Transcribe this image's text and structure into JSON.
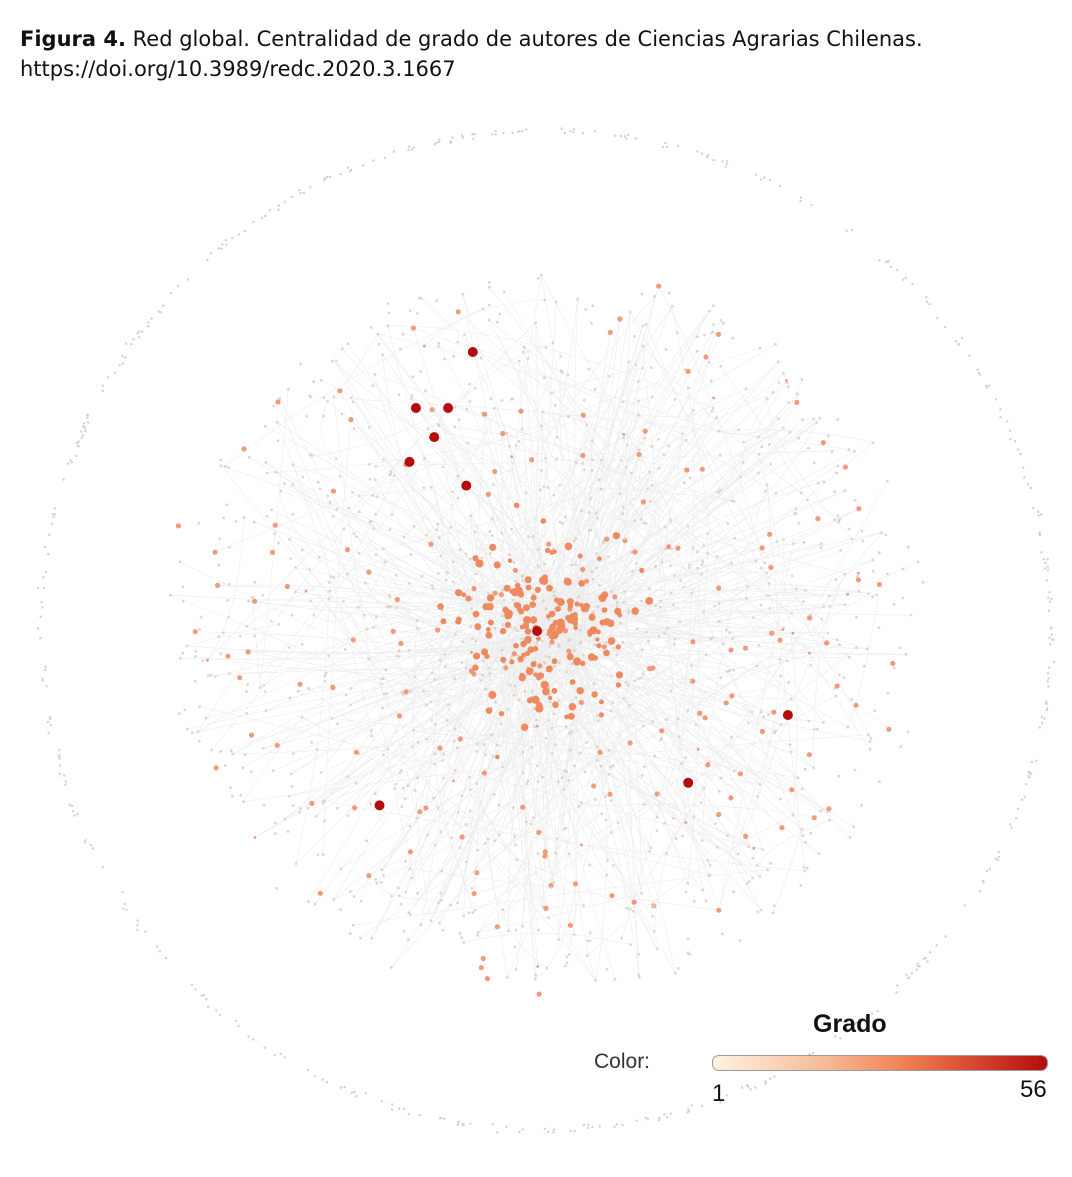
{
  "caption": {
    "label": "Figura 4.",
    "title": "Red global. Centralidad de grado de autores de Ciencias Agrarias Chilenas.",
    "doi": "https://doi.org/10.3989/redc.2020.3.1667"
  },
  "legend": {
    "title": "Grado",
    "color_label": "Color:",
    "min": "1",
    "max": "56",
    "colors": [
      "#fff2e2",
      "#f6b892",
      "#ee7a4e",
      "#b50c0c"
    ]
  },
  "colors": {
    "edge": "#dcdcdc",
    "node_low": "#d9cfc4",
    "node_mid": "#ee8a60",
    "node_high": "#b50c0c"
  }
}
